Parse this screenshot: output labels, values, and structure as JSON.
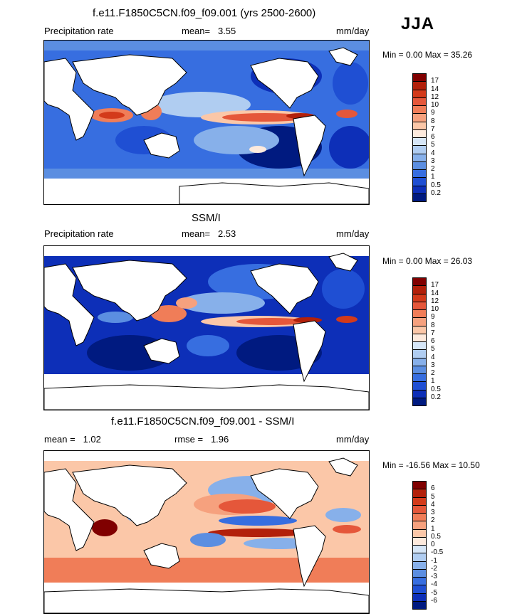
{
  "season": "JJA",
  "panels": [
    {
      "title": "f.e11.F1850C5CN.f09_f09.001 (yrs 2500-2600)",
      "left_label": "Precipitation rate",
      "mean_label": "mean=",
      "mean_value": "3.55",
      "units": "mm/day",
      "minmax": "Min =   0.00 Max =  35.26",
      "colorbar": {
        "labels": [
          "17",
          "14",
          "12",
          "10",
          "9",
          "8",
          "7",
          "6",
          "5",
          "4",
          "3",
          "2",
          "1",
          "0.5",
          "0.2"
        ],
        "colors": [
          "#800000",
          "#b2200a",
          "#d33a1a",
          "#e5573a",
          "#f07d58",
          "#f6a17e",
          "#fbc7a8",
          "#fdeadd",
          "#d6e6f7",
          "#b0cdf1",
          "#87b0ea",
          "#5b8ee1",
          "#376ee0",
          "#1f4fd3",
          "#0d2fb8",
          "#001a80"
        ]
      }
    },
    {
      "title": "SSM/I",
      "left_label": "Precipitation rate",
      "mean_label": "mean=",
      "mean_value": "2.53",
      "units": "mm/day",
      "minmax": "Min =   0.00 Max =  26.03",
      "colorbar": {
        "labels": [
          "17",
          "14",
          "12",
          "10",
          "9",
          "8",
          "7",
          "6",
          "5",
          "4",
          "3",
          "2",
          "1",
          "0.5",
          "0.2"
        ],
        "colors": [
          "#800000",
          "#b2200a",
          "#d33a1a",
          "#e5573a",
          "#f07d58",
          "#f6a17e",
          "#fbc7a8",
          "#fdeadd",
          "#d6e6f7",
          "#b0cdf1",
          "#87b0ea",
          "#5b8ee1",
          "#376ee0",
          "#1f4fd3",
          "#0d2fb8",
          "#001a80"
        ]
      }
    },
    {
      "title": "f.e11.F1850C5CN.f09_f09.001 - SSM/I",
      "left_label": "mean =",
      "mean_label": "rmse =",
      "mean_value": "1.96",
      "left_value": "1.02",
      "units": "mm/day",
      "minmax": "Min = -16.56 Max =  10.50",
      "colorbar": {
        "labels": [
          "6",
          "5",
          "4",
          "3",
          "2",
          "1",
          "0.5",
          "0",
          "-0.5",
          "-1",
          "-2",
          "-3",
          "-4",
          "-5",
          "-6"
        ],
        "colors": [
          "#800000",
          "#b2200a",
          "#d33a1a",
          "#e5573a",
          "#f07d58",
          "#f6a17e",
          "#fbc7a8",
          "#fdeadd",
          "#d6e6f7",
          "#b0cdf1",
          "#87b0ea",
          "#5b8ee1",
          "#376ee0",
          "#1f4fd3",
          "#0d2fb8",
          "#001a80"
        ]
      }
    }
  ]
}
